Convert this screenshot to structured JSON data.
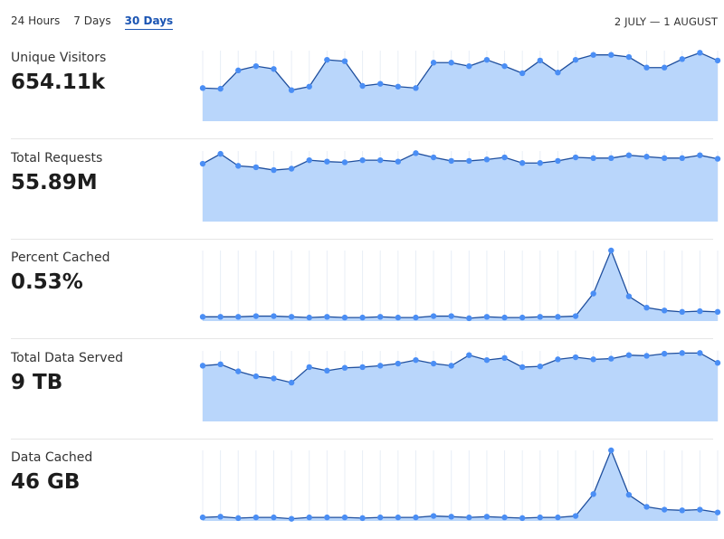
{
  "tabs": [
    {
      "label": "24 Hours",
      "active": false
    },
    {
      "label": "7 Days",
      "active": false
    },
    {
      "label": "30 Days",
      "active": true
    }
  ],
  "date_range": "2 JULY — 1 AUGUST",
  "colors": {
    "accent": "#1b55b3",
    "area_fill": "#b9d6fb",
    "line": "#1f4f9e",
    "point": "#4a8ef5",
    "grid": "#e8eef6"
  },
  "chart_data": [
    {
      "type": "area",
      "title": "Unique Visitors",
      "total": "654.11k",
      "values": [
        47,
        46,
        72,
        78,
        74,
        44,
        49,
        87,
        85,
        50,
        53,
        49,
        47,
        83,
        83,
        78,
        87,
        78,
        68,
        86,
        69,
        87,
        94,
        94,
        91,
        76,
        76,
        88,
        97,
        86
      ]
    },
    {
      "type": "area",
      "title": "Total Requests",
      "total": "55.89M",
      "values": [
        82,
        96,
        79,
        77,
        73,
        75,
        87,
        85,
        84,
        87,
        87,
        85,
        97,
        91,
        86,
        86,
        88,
        91,
        83,
        83,
        86,
        91,
        90,
        90,
        94,
        92,
        90,
        90,
        94,
        89
      ]
    },
    {
      "type": "area",
      "title": "Percent Cached",
      "total": "0.53%",
      "values": [
        6,
        6,
        6,
        7,
        7,
        6,
        5,
        6,
        5,
        5,
        6,
        5,
        5,
        7,
        7,
        4,
        6,
        5,
        5,
        6,
        6,
        7,
        39,
        100,
        35,
        19,
        15,
        13,
        14,
        13
      ]
    },
    {
      "type": "area",
      "title": "Total Data Served",
      "total": "9 TB",
      "values": [
        79,
        81,
        71,
        64,
        61,
        55,
        77,
        72,
        76,
        77,
        79,
        82,
        87,
        82,
        79,
        94,
        87,
        90,
        77,
        78,
        88,
        91,
        88,
        89,
        94,
        93,
        96,
        97,
        97,
        83
      ]
    },
    {
      "type": "area",
      "title": "Data Cached",
      "total": "46 GB",
      "values": [
        5,
        6,
        4,
        5,
        5,
        3,
        5,
        5,
        5,
        4,
        5,
        5,
        5,
        7,
        6,
        5,
        6,
        5,
        4,
        5,
        5,
        7,
        38,
        100,
        37,
        20,
        16,
        15,
        16,
        12
      ]
    }
  ]
}
